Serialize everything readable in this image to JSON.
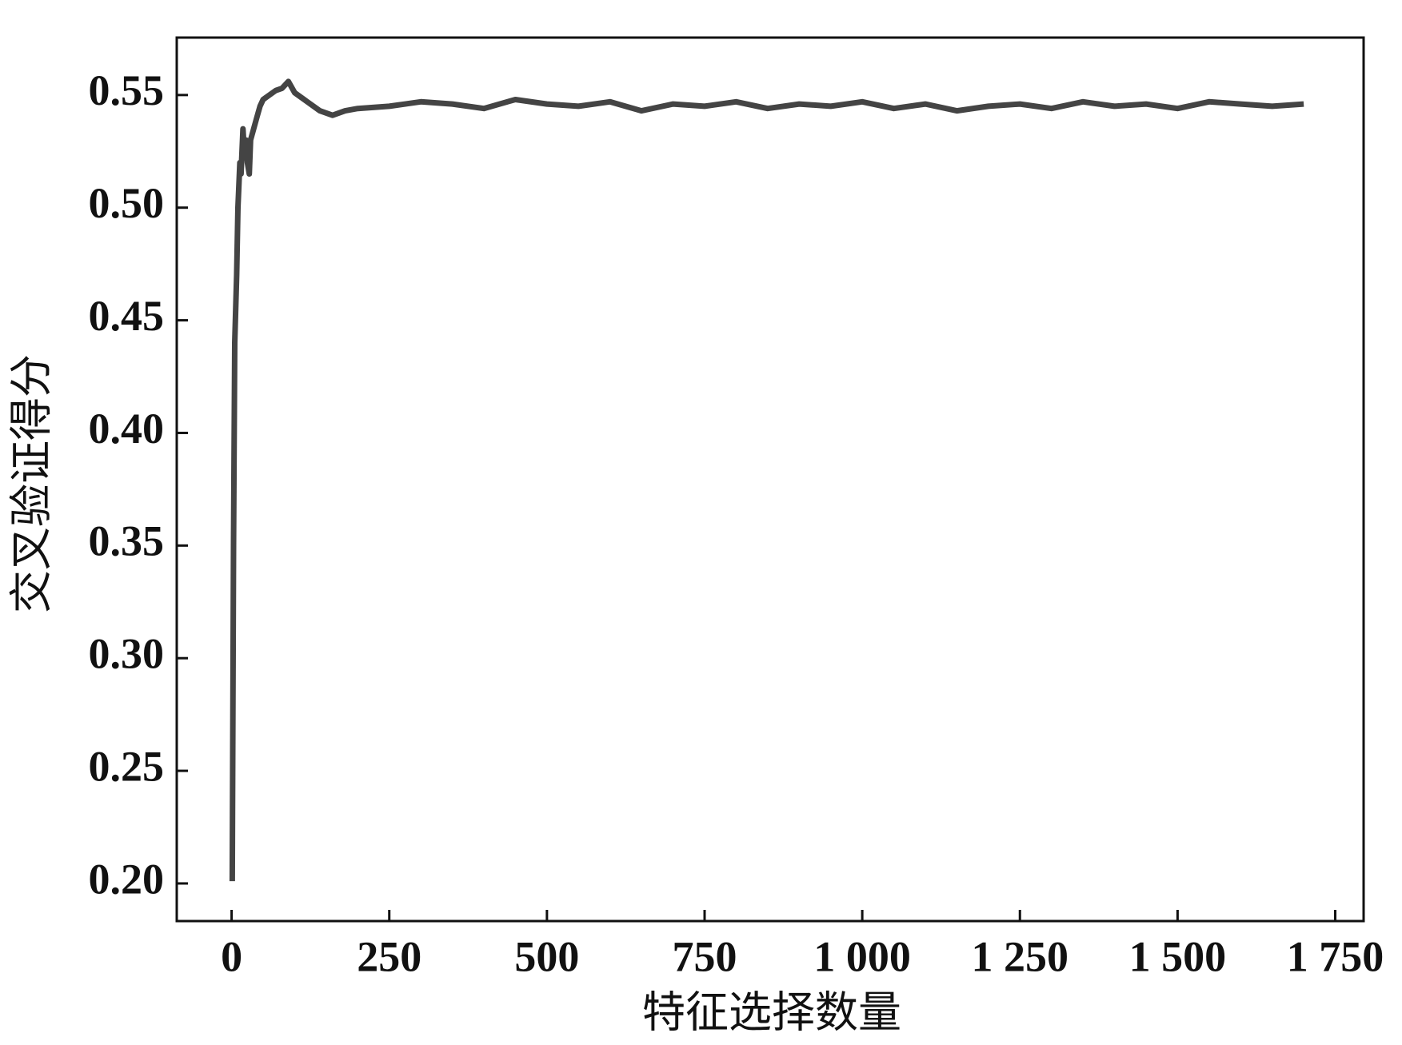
{
  "chart_data": {
    "type": "line",
    "xlabel": "特征选择数量",
    "ylabel": "交叉验证得分",
    "x": [
      1,
      3,
      5,
      8,
      10,
      13,
      15,
      18,
      20,
      23,
      25,
      28,
      30,
      35,
      40,
      45,
      50,
      60,
      70,
      80,
      90,
      100,
      120,
      140,
      160,
      180,
      200,
      250,
      300,
      350,
      400,
      450,
      500,
      550,
      600,
      650,
      700,
      750,
      800,
      850,
      900,
      950,
      1000,
      1050,
      1100,
      1150,
      1200,
      1250,
      1300,
      1350,
      1400,
      1450,
      1500,
      1550,
      1600,
      1650,
      1700
    ],
    "series": [
      {
        "color": "#444444",
        "values": [
          0.201,
          0.35,
          0.44,
          0.47,
          0.5,
          0.52,
          0.515,
          0.535,
          0.525,
          0.53,
          0.52,
          0.515,
          0.53,
          0.535,
          0.54,
          0.545,
          0.548,
          0.55,
          0.552,
          0.553,
          0.556,
          0.551,
          0.547,
          0.543,
          0.541,
          0.543,
          0.544,
          0.545,
          0.547,
          0.546,
          0.544,
          0.548,
          0.546,
          0.545,
          0.547,
          0.543,
          0.546,
          0.545,
          0.547,
          0.544,
          0.546,
          0.545,
          0.547,
          0.544,
          0.546,
          0.543,
          0.545,
          0.546,
          0.544,
          0.547,
          0.545,
          0.546,
          0.544,
          0.547,
          0.546,
          0.545,
          0.546
        ]
      }
    ],
    "xlim": [
      -87,
      1795
    ],
    "ylim": [
      0.1833,
      0.5755
    ],
    "xticks": [
      0,
      250,
      500,
      750,
      {
        "value": 1000,
        "label": "1 000"
      },
      {
        "value": 1250,
        "label": "1 250"
      },
      {
        "value": 1500,
        "label": "1 500"
      },
      {
        "value": 1750,
        "label": "1 750"
      }
    ],
    "yticks": [
      {
        "value": 0.2,
        "label": "0.20"
      },
      0.25,
      {
        "value": 0.3,
        "label": "0.30"
      },
      0.35,
      {
        "value": 0.4,
        "label": "0.40"
      },
      0.45,
      {
        "value": 0.5,
        "label": "0.50"
      },
      0.55
    ]
  }
}
